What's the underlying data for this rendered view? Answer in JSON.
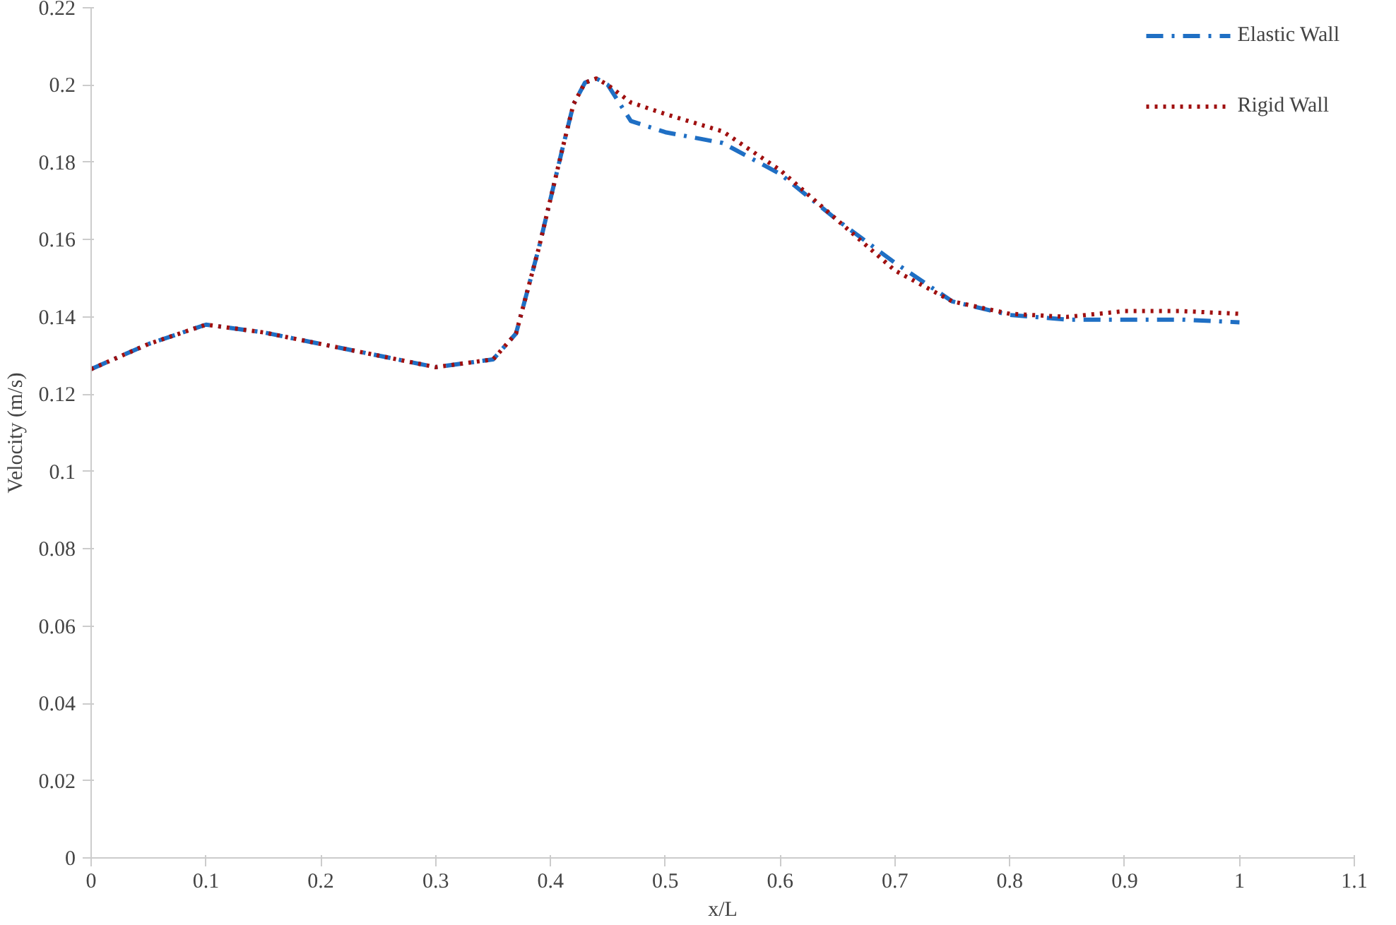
{
  "chart_data": {
    "type": "line",
    "xlabel": "x/L",
    "ylabel": "Velocity (m/s)",
    "x": [
      0,
      0.05,
      0.1,
      0.15,
      0.2,
      0.25,
      0.3,
      0.35,
      0.37,
      0.39,
      0.41,
      0.42,
      0.43,
      0.44,
      0.45,
      0.47,
      0.5,
      0.55,
      0.6,
      0.65,
      0.7,
      0.75,
      0.8,
      0.85,
      0.9,
      0.95,
      1.0
    ],
    "series": [
      {
        "name": "Elastic Wall",
        "color": "#1f6fc4",
        "line_style": "dashdot",
        "values": [
          0.1265,
          0.133,
          0.138,
          0.136,
          0.133,
          0.13,
          0.127,
          0.129,
          0.1357,
          0.158,
          0.183,
          0.195,
          0.2006,
          0.2017,
          0.2,
          0.1907,
          0.1878,
          0.185,
          0.177,
          0.165,
          0.154,
          0.144,
          0.1405,
          0.1393,
          0.1393,
          0.1393,
          0.1386
        ]
      },
      {
        "name": "Rigid Wall",
        "color": "#a01010",
        "line_style": "dotted",
        "values": [
          0.1265,
          0.133,
          0.138,
          0.136,
          0.133,
          0.13,
          0.127,
          0.129,
          0.1357,
          0.158,
          0.183,
          0.195,
          0.2006,
          0.2017,
          0.2,
          0.1955,
          0.1925,
          0.188,
          0.178,
          0.165,
          0.152,
          0.144,
          0.1408,
          0.14,
          0.1415,
          0.1415,
          0.1408
        ]
      }
    ],
    "xlim": [
      0,
      1.1
    ],
    "xticks": [
      0,
      0.1,
      0.2,
      0.3,
      0.4,
      0.5,
      0.6,
      0.7,
      0.8,
      0.9,
      1,
      1.1
    ],
    "ylim": [
      0,
      0.22
    ],
    "yticks": [
      0,
      0.02,
      0.04,
      0.06,
      0.08,
      0.1,
      0.12,
      0.14,
      0.16,
      0.18,
      0.2,
      0.22
    ],
    "grid": false,
    "legend": "top right"
  }
}
